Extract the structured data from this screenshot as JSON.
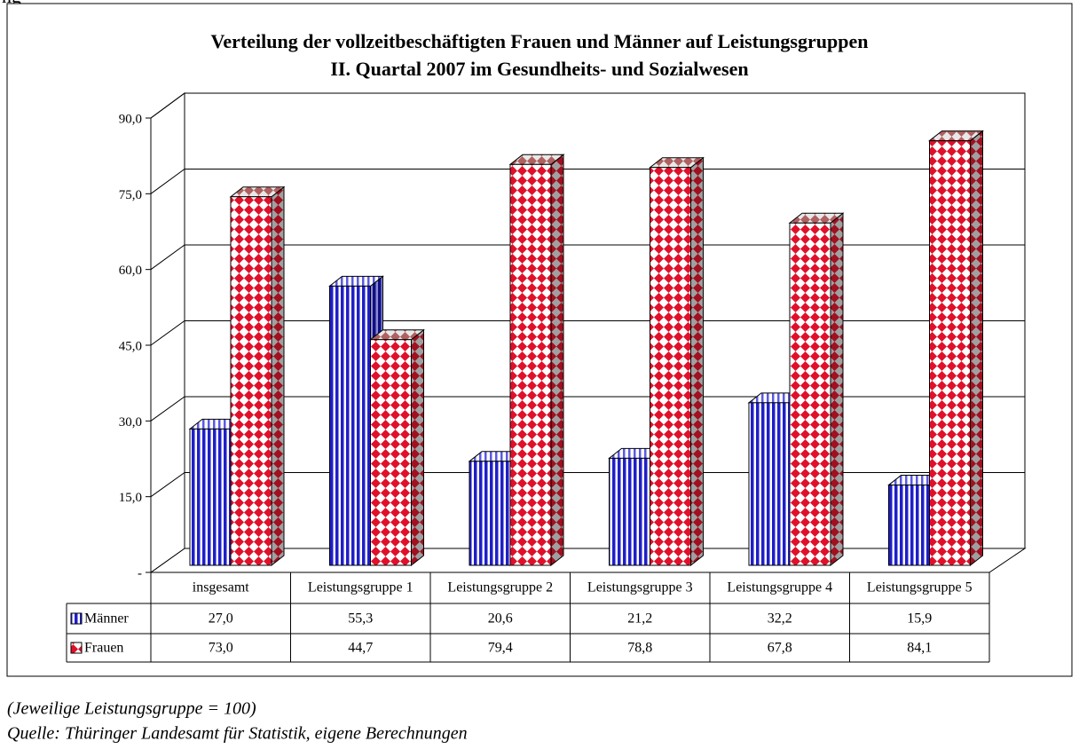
{
  "header_fragment": "ng",
  "chart_data": {
    "type": "bar3d",
    "title": "Verteilung der vollzeitbeschäftigten Frauen und Männer auf  Leistungsgruppen",
    "subtitle": "II. Quartal 2007 im Gesundheits- und Sozialwesen",
    "categories": [
      "insgesamt",
      "Leistungsgruppe 1",
      "Leistungsgruppe 2",
      "Leistungsgruppe 3",
      "Leistungsgruppe 4",
      "Leistungsgruppe 5"
    ],
    "series": [
      {
        "name": "Männer",
        "color": "#1f1fc8",
        "values": [
          27.0,
          55.3,
          20.6,
          21.2,
          32.2,
          15.9
        ],
        "value_labels": [
          "27,0",
          "55,3",
          "20,6",
          "21,2",
          "32,2",
          "15,9"
        ]
      },
      {
        "name": "Frauen",
        "color": "#e0102a",
        "values": [
          73.0,
          44.7,
          79.4,
          78.8,
          67.8,
          84.1
        ],
        "value_labels": [
          "73,0",
          "44,7",
          "79,4",
          "78,8",
          "67,8",
          "84,1"
        ]
      }
    ],
    "ylim": [
      0,
      90
    ],
    "yticks": [
      {
        "value": 0,
        "label": "-"
      },
      {
        "value": 15,
        "label": "15,0"
      },
      {
        "value": 30,
        "label": "30,0"
      },
      {
        "value": 45,
        "label": "45,0"
      },
      {
        "value": 60,
        "label": "60,0"
      },
      {
        "value": 75,
        "label": "75,0"
      },
      {
        "value": 90,
        "label": "90,0"
      }
    ],
    "grid": true,
    "data_table": true
  },
  "footnotes": [
    "(Jeweilige Leistungsgruppe = 100)",
    "Quelle: Thüringer Landesamt für Statistik, eigene Berechnungen"
  ]
}
